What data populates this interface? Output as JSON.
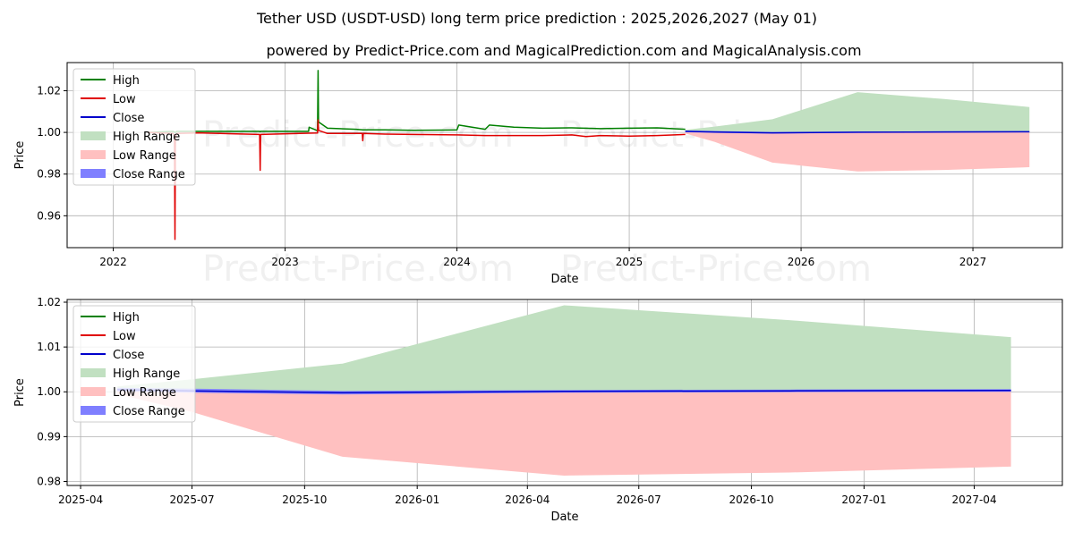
{
  "header": {
    "title": "Tether USD (USDT-USD) long term price prediction : 2025,2026,2027 (May 01)",
    "subtitle": "powered by Predict-Price.com and MagicalPrediction.com and MagicalAnalysis.com"
  },
  "watermark": "Predict-Price.com",
  "colors": {
    "high": "#008000",
    "low": "#e00000",
    "close": "#0000cc",
    "high_range": "#c1e0c1",
    "low_range": "#ffc0c0",
    "close_range": "#7f7fff",
    "grid": "#b0b0b0"
  },
  "legend": [
    {
      "label": "High",
      "type": "line",
      "color_key": "high"
    },
    {
      "label": "Low",
      "type": "line",
      "color_key": "low"
    },
    {
      "label": "Close",
      "type": "line",
      "color_key": "close"
    },
    {
      "label": "High Range",
      "type": "patch",
      "color_key": "high_range"
    },
    {
      "label": "Low Range",
      "type": "patch",
      "color_key": "low_range"
    },
    {
      "label": "Close Range",
      "type": "patch",
      "color_key": "close_range"
    }
  ],
  "chart_data": [
    {
      "type": "line",
      "id": "top",
      "xlabel": "Date",
      "ylabel": "Price",
      "xlim": [
        "2021-09-25",
        "2027-07-10"
      ],
      "ylim": [
        0.9447,
        1.0335
      ],
      "xticks": [
        {
          "value": "2022-01-01",
          "label": "2022"
        },
        {
          "value": "2023-01-01",
          "label": "2023"
        },
        {
          "value": "2024-01-01",
          "label": "2024"
        },
        {
          "value": "2025-01-01",
          "label": "2025"
        },
        {
          "value": "2026-01-01",
          "label": "2026"
        },
        {
          "value": "2027-01-01",
          "label": "2027"
        }
      ],
      "yticks": [
        0.96,
        0.98,
        1.0,
        1.02
      ],
      "ytick_labels": [
        "0.96",
        "0.98",
        "1.00",
        "1.02"
      ],
      "grid": true,
      "legend_position": "upper-left",
      "series": [
        {
          "name": "High",
          "color_key": "high",
          "x": [
            "2022-03-15",
            "2022-05-08",
            "2022-05-12",
            "2022-05-13",
            "2022-05-16",
            "2022-07-01",
            "2022-11-08",
            "2022-11-09",
            "2022-11-10",
            "2023-02-20",
            "2023-02-21",
            "2023-03-11",
            "2023-03-12",
            "2023-03-13",
            "2023-04-01",
            "2023-06-01",
            "2023-06-15",
            "2023-08-01",
            "2023-10-01",
            "2024-01-01",
            "2024-01-05",
            "2024-03-01",
            "2024-03-10",
            "2024-05-01",
            "2024-07-01",
            "2024-09-01",
            "2024-11-01",
            "2025-01-01",
            "2025-03-01",
            "2025-04-30"
          ],
          "y": [
            1.0,
            1.0005,
            1.0,
            1.0,
            1.0005,
            1.0005,
            1.0005,
            1.0003,
            1.0005,
            1.0005,
            1.0025,
            1.0008,
            1.0297,
            1.005,
            1.002,
            1.0015,
            1.0012,
            1.0012,
            1.001,
            1.0012,
            1.0035,
            1.0015,
            1.0035,
            1.0025,
            1.002,
            1.0022,
            1.0018,
            1.002,
            1.0022,
            1.0015
          ]
        },
        {
          "name": "Low",
          "color_key": "low",
          "x": [
            "2022-03-15",
            "2022-05-08",
            "2022-05-11",
            "2022-05-12",
            "2022-05-13",
            "2022-05-16",
            "2022-07-01",
            "2022-11-08",
            "2022-11-09",
            "2022-11-10",
            "2023-02-01",
            "2023-03-11",
            "2023-03-12",
            "2023-03-13",
            "2023-04-01",
            "2023-06-14",
            "2023-06-15",
            "2023-06-16",
            "2023-08-01",
            "2023-10-01",
            "2024-01-01",
            "2024-03-01",
            "2024-05-01",
            "2024-07-01",
            "2024-09-01",
            "2024-10-01",
            "2024-11-01",
            "2025-01-01",
            "2025-03-01",
            "2025-04-30"
          ],
          "y": [
            1.0,
            0.9995,
            0.9985,
            0.9487,
            0.998,
            0.9995,
            0.9998,
            0.999,
            0.9818,
            0.999,
            0.9995,
            0.9997,
            1.006,
            1.001,
            0.9995,
            0.9995,
            0.996,
            0.9995,
            0.9992,
            0.999,
            0.9988,
            0.9985,
            0.9985,
            0.9985,
            0.9988,
            0.998,
            0.9985,
            0.9982,
            0.9985,
            0.999
          ]
        },
        {
          "name": "Close",
          "color_key": "close",
          "x": [
            "2025-04-30",
            "2025-07-01",
            "2025-11-01",
            "2026-05-01",
            "2026-11-01",
            "2027-05-01"
          ],
          "y": [
            1.0005,
            1.0002,
            0.9998,
            1.0001,
            1.0002,
            1.0003
          ]
        }
      ],
      "bands": [
        {
          "name": "High Range",
          "color_key": "high_range",
          "x": [
            "2025-04-30",
            "2025-07-01",
            "2025-11-01",
            "2026-05-01",
            "2026-11-01",
            "2027-05-01"
          ],
          "upper": [
            1.0012,
            1.0028,
            1.0063,
            1.0193,
            1.016,
            1.0122
          ],
          "lower": [
            1.0005,
            1.0002,
            0.9998,
            1.0001,
            1.0002,
            1.0003
          ]
        },
        {
          "name": "Low Range",
          "color_key": "low_range",
          "x": [
            "2025-04-30",
            "2025-07-01",
            "2025-11-01",
            "2026-05-01",
            "2026-11-01",
            "2027-05-01"
          ],
          "upper": [
            1.0005,
            1.0002,
            0.9998,
            1.0001,
            1.0002,
            1.0003
          ],
          "lower": [
            0.9995,
            0.9955,
            0.9855,
            0.9813,
            0.982,
            0.9833
          ]
        },
        {
          "name": "Close Range",
          "color_key": "close_range",
          "x": [
            "2025-04-30",
            "2025-07-01",
            "2025-11-01",
            "2026-05-01",
            "2026-11-01",
            "2027-05-01"
          ],
          "upper": [
            1.0009,
            1.0007,
            1.0002,
            1.0004,
            1.0005,
            1.0006
          ],
          "lower": [
            1.0001,
            0.9998,
            0.9994,
            0.9998,
            0.9999,
            1.0
          ]
        }
      ]
    },
    {
      "type": "line",
      "id": "bottom",
      "xlabel": "Date",
      "ylabel": "Price",
      "xlim": [
        "2025-03-21",
        "2027-06-12"
      ],
      "ylim": [
        0.9791,
        1.0206
      ],
      "xticks": [
        {
          "value": "2025-04-01",
          "label": "2025-04"
        },
        {
          "value": "2025-07-01",
          "label": "2025-07"
        },
        {
          "value": "2025-10-01",
          "label": "2025-10"
        },
        {
          "value": "2026-01-01",
          "label": "2026-01"
        },
        {
          "value": "2026-04-01",
          "label": "2026-04"
        },
        {
          "value": "2026-07-01",
          "label": "2026-07"
        },
        {
          "value": "2026-10-01",
          "label": "2026-10"
        },
        {
          "value": "2027-01-01",
          "label": "2027-01"
        },
        {
          "value": "2027-04-01",
          "label": "2027-04"
        }
      ],
      "yticks": [
        0.98,
        0.99,
        1.0,
        1.01,
        1.02
      ],
      "ytick_labels": [
        "0.98",
        "0.99",
        "1.00",
        "1.01",
        "1.02"
      ],
      "grid": true,
      "legend_position": "upper-left",
      "series": [
        {
          "name": "Close",
          "color_key": "close",
          "x": [
            "2025-05-01",
            "2025-07-01",
            "2025-11-01",
            "2026-05-01",
            "2026-11-01",
            "2027-05-01"
          ],
          "y": [
            1.0005,
            1.0002,
            0.9998,
            1.0001,
            1.0002,
            1.0003
          ]
        }
      ],
      "bands": [
        {
          "name": "High Range",
          "color_key": "high_range",
          "x": [
            "2025-05-01",
            "2025-07-01",
            "2025-11-01",
            "2026-05-01",
            "2026-11-01",
            "2027-05-01"
          ],
          "upper": [
            1.0012,
            1.0028,
            1.0063,
            1.0193,
            1.016,
            1.0122
          ],
          "lower": [
            1.0005,
            1.0002,
            0.9998,
            1.0001,
            1.0002,
            1.0003
          ]
        },
        {
          "name": "Low Range",
          "color_key": "low_range",
          "x": [
            "2025-05-01",
            "2025-07-01",
            "2025-11-01",
            "2026-05-01",
            "2026-11-01",
            "2027-05-01"
          ],
          "upper": [
            1.0005,
            1.0002,
            0.9998,
            1.0001,
            1.0002,
            1.0003
          ],
          "lower": [
            0.9995,
            0.9955,
            0.9855,
            0.9813,
            0.982,
            0.9833
          ]
        },
        {
          "name": "Close Range",
          "color_key": "close_range",
          "x": [
            "2025-05-01",
            "2025-07-01",
            "2025-11-01",
            "2026-05-01",
            "2026-11-01",
            "2027-05-01"
          ],
          "upper": [
            1.0009,
            1.0007,
            1.0002,
            1.0004,
            1.0005,
            1.0006
          ],
          "lower": [
            1.0001,
            0.9998,
            0.9994,
            0.9998,
            0.9999,
            1.0
          ]
        }
      ]
    }
  ]
}
